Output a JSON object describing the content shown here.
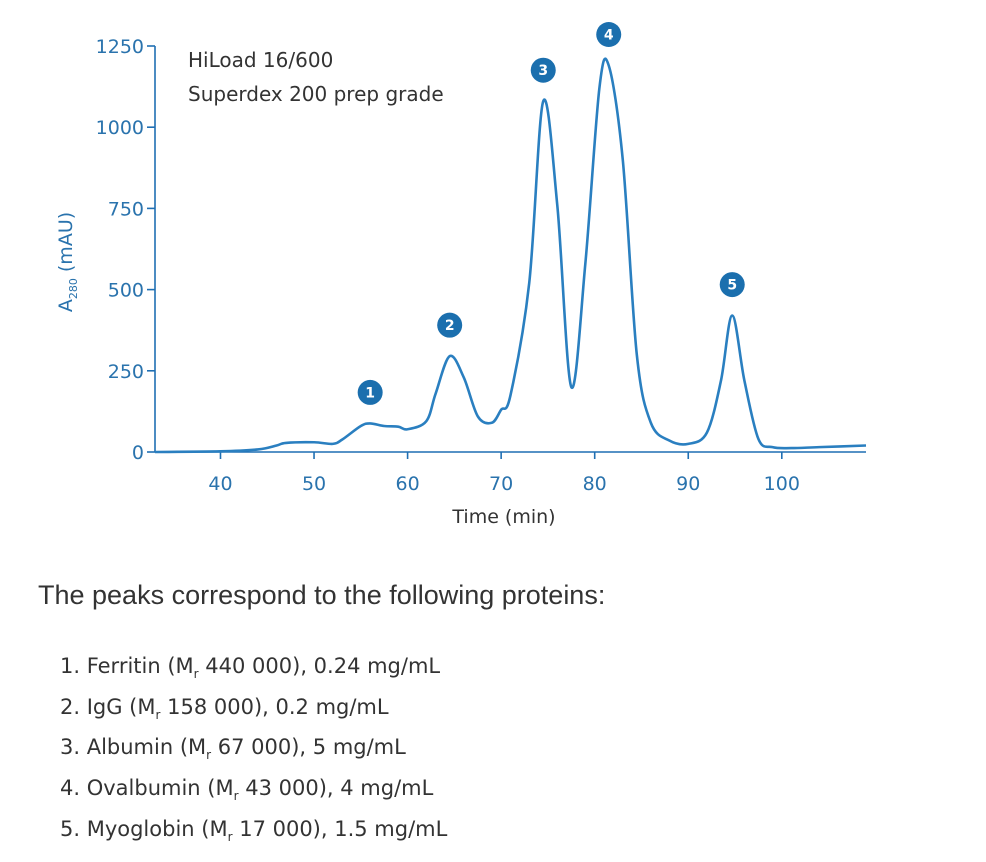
{
  "chart_data": {
    "type": "line",
    "annotation": [
      "HiLoad 16/600",
      "Superdex 200 prep grade"
    ],
    "xlabel": "Time (min)",
    "ylabel": "A280 (mAU)",
    "ylabel_parts": {
      "main": "A",
      "sub": "280",
      "unit": " (mAU)"
    },
    "xlim": [
      33,
      109
    ],
    "ylim": [
      0,
      1250
    ],
    "x_ticks": [
      40,
      50,
      60,
      70,
      80,
      90,
      100
    ],
    "y_ticks": [
      0,
      250,
      500,
      750,
      1000,
      1250
    ],
    "grid": false,
    "legend": "none",
    "colors": {
      "trace": "#2a7fc0",
      "axis": "#1f6fb3",
      "badge": "#1b6fae"
    },
    "series": [
      {
        "x": [
          33,
          40,
          44,
          46,
          47,
          50,
          52,
          53,
          55,
          56,
          57.5,
          59,
          60,
          62,
          63,
          64.5,
          66,
          67.5,
          69,
          70,
          71,
          73,
          74.5,
          76,
          77.5,
          79,
          80.5,
          81.5,
          83,
          84.5,
          86,
          88,
          90,
          92,
          93.5,
          94.7,
          96,
          97.5,
          99,
          101,
          104,
          109
        ],
        "y": [
          0,
          2,
          8,
          20,
          28,
          30,
          25,
          38,
          80,
          88,
          80,
          78,
          70,
          95,
          180,
          295,
          230,
          110,
          90,
          130,
          175,
          520,
          1080,
          760,
          200,
          580,
          1120,
          1190,
          900,
          300,
          90,
          35,
          25,
          60,
          220,
          420,
          220,
          40,
          15,
          12,
          15,
          20
        ]
      }
    ],
    "peaks": [
      {
        "label": "1",
        "x": 56,
        "y": 88
      },
      {
        "label": "2",
        "x": 64.5,
        "y": 295
      },
      {
        "label": "3",
        "x": 74.5,
        "y": 1080
      },
      {
        "label": "4",
        "x": 81.5,
        "y": 1190
      },
      {
        "label": "5",
        "x": 94.7,
        "y": 420
      }
    ]
  },
  "text": {
    "intro": "The peaks correspond to the following proteins:",
    "items": [
      {
        "prefix": "1. Ferritin (M",
        "sub": "r",
        "suffix": " 440 000), 0.24 mg/mL"
      },
      {
        "prefix": "2. IgG (M",
        "sub": "r",
        "suffix": " 158 000), 0.2 mg/mL"
      },
      {
        "prefix": "3. Albumin (M",
        "sub": "r",
        "suffix": " 67 000), 5 mg/mL"
      },
      {
        "prefix": "4. Ovalbumin (M",
        "sub": "r",
        "suffix": " 43 000), 4 mg/mL"
      },
      {
        "prefix": "5. Myoglobin (M",
        "sub": "r",
        "suffix": " 17 000), 1.5 mg/mL"
      }
    ]
  }
}
